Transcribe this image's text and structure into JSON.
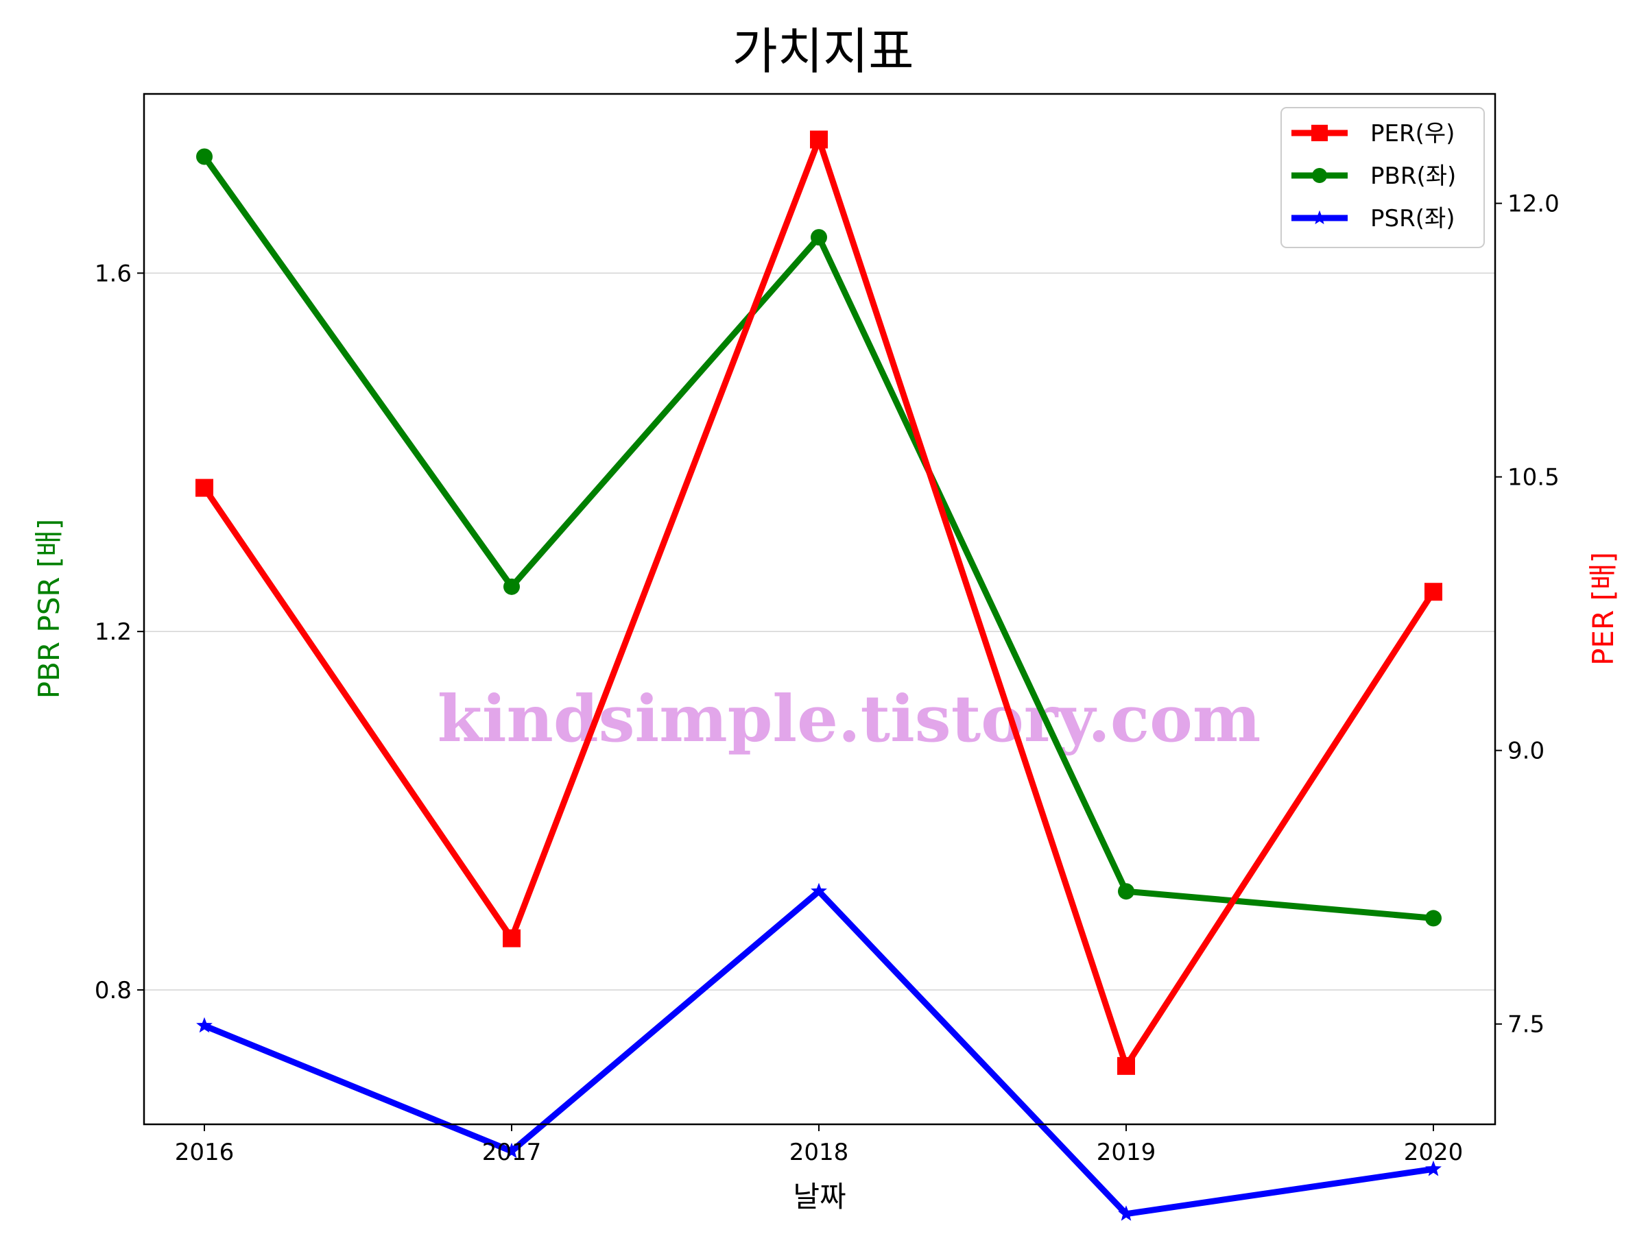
{
  "chart_data": {
    "type": "line",
    "title": "가치지표",
    "xlabel": "날짜",
    "ylabel_left": "PBR PSR [배]",
    "ylabel_right": "PER [배]",
    "ylabel_left_color": "#008000",
    "ylabel_right_color": "#ff0000",
    "categories": [
      "2016",
      "2017",
      "2018",
      "2019",
      "2020"
    ],
    "ylim_left": [
      0.65,
      1.8
    ],
    "ylim_right": [
      6.95,
      12.6
    ],
    "yticks_left": [
      0.8,
      1.2,
      1.6
    ],
    "yticks_left_labels": [
      "0.8",
      "1.2",
      "1.6"
    ],
    "yticks_right": [
      7.5,
      9.0,
      10.5,
      12.0
    ],
    "yticks_right_labels": [
      "7.5",
      "9.0",
      "10.5",
      "12.0"
    ],
    "grid": "horizontal",
    "legend_position": "top-right",
    "series": [
      {
        "name": "PER(우)",
        "axis": "right",
        "color": "#ff0000",
        "marker": "square",
        "values": [
          10.44,
          7.97,
          12.35,
          7.27,
          9.87
        ]
      },
      {
        "name": "PBR(좌)",
        "axis": "left",
        "color": "#008000",
        "marker": "circle",
        "values": [
          1.73,
          1.25,
          1.64,
          0.91,
          0.88
        ]
      },
      {
        "name": "PSR(좌)",
        "axis": "left",
        "color": "#0000ff",
        "marker": "star",
        "values": [
          0.76,
          0.62,
          0.91,
          0.55,
          0.6
        ]
      }
    ],
    "watermark": "kindsimple.tistory.com"
  }
}
